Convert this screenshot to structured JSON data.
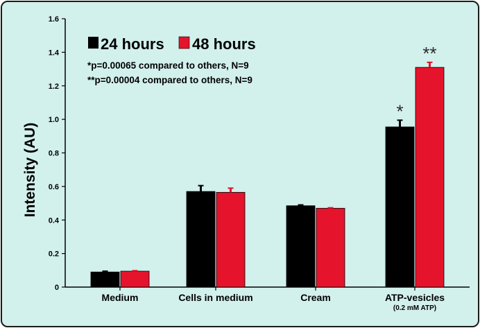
{
  "chart_data": {
    "type": "bar",
    "categories": [
      "Medium",
      "Cells in medium",
      "Cream",
      "ATP-vesicles"
    ],
    "category_sublabels": [
      "",
      "",
      "",
      "(0.2 mM ATP)"
    ],
    "series": [
      {
        "name": "24 hours",
        "color": "#000000",
        "values": [
          0.09,
          0.57,
          0.485,
          0.955
        ],
        "errors": [
          0.005,
          0.035,
          0.005,
          0.04
        ]
      },
      {
        "name": "48 hours",
        "color": "#e5142c",
        "values": [
          0.095,
          0.565,
          0.47,
          1.31
        ],
        "errors": [
          0.003,
          0.025,
          0.003,
          0.03
        ]
      }
    ],
    "title": "",
    "xlabel": "",
    "ylabel": "Intensity (AU)",
    "ylim": [
      0,
      1.6
    ],
    "yticks": [
      0,
      0.2,
      0.4,
      0.6,
      0.8,
      1.0,
      1.2,
      1.4,
      1.6
    ],
    "ytick_labels": [
      "0",
      "0.2",
      "0.4",
      "0.6",
      "0.8",
      "1.0",
      "1.2",
      "1.4",
      "1.6"
    ],
    "grid": false,
    "legend_position": "top-left",
    "annotations": [
      "*p=0.00065 compared to others, N=9",
      "**p=0.00004 compared to others, N=9"
    ],
    "significance_markers": [
      {
        "category": "ATP-vesicles",
        "series": "24 hours",
        "text": "*"
      },
      {
        "category": "ATP-vesicles",
        "series": "48 hours",
        "text": "**"
      }
    ],
    "background_color": "#d2f0ec"
  }
}
